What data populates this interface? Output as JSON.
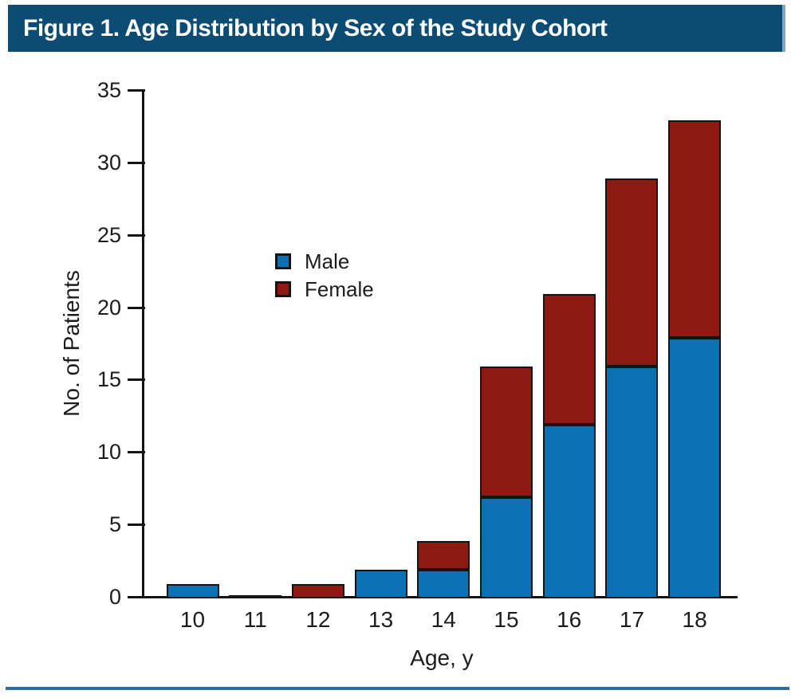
{
  "header": {
    "title": "Figure 1. Age Distribution by Sex of the Study Cohort"
  },
  "chart_data": {
    "type": "bar",
    "stacked": true,
    "xlabel": "Age, y",
    "ylabel": "No. of Patients",
    "categories": [
      "10",
      "11",
      "12",
      "13",
      "14",
      "15",
      "16",
      "17",
      "18"
    ],
    "series": [
      {
        "name": "Male",
        "color": "#0b71b3",
        "values": [
          1,
          0,
          0,
          2,
          2,
          7,
          12,
          16,
          18
        ]
      },
      {
        "name": "Female",
        "color": "#8c1a13",
        "values": [
          0,
          0,
          1,
          0,
          2,
          9,
          9,
          13,
          15
        ]
      }
    ],
    "totals": [
      1,
      0,
      1,
      2,
      4,
      16,
      21,
      29,
      33
    ],
    "ylim": [
      0,
      35
    ],
    "y_ticks": [
      0,
      5,
      10,
      15,
      20,
      25,
      30,
      35
    ],
    "grid": false,
    "legend_position": "inside-upper-left",
    "bar_outline_color": "#141414"
  },
  "colors": {
    "title_bar_background": "#0d4c72",
    "title_bar_edge": "#84a7c0",
    "title_text": "#ffffff",
    "bottom_rule": "#2e6d9d",
    "axis": "#141414",
    "background": "#ffffff"
  }
}
